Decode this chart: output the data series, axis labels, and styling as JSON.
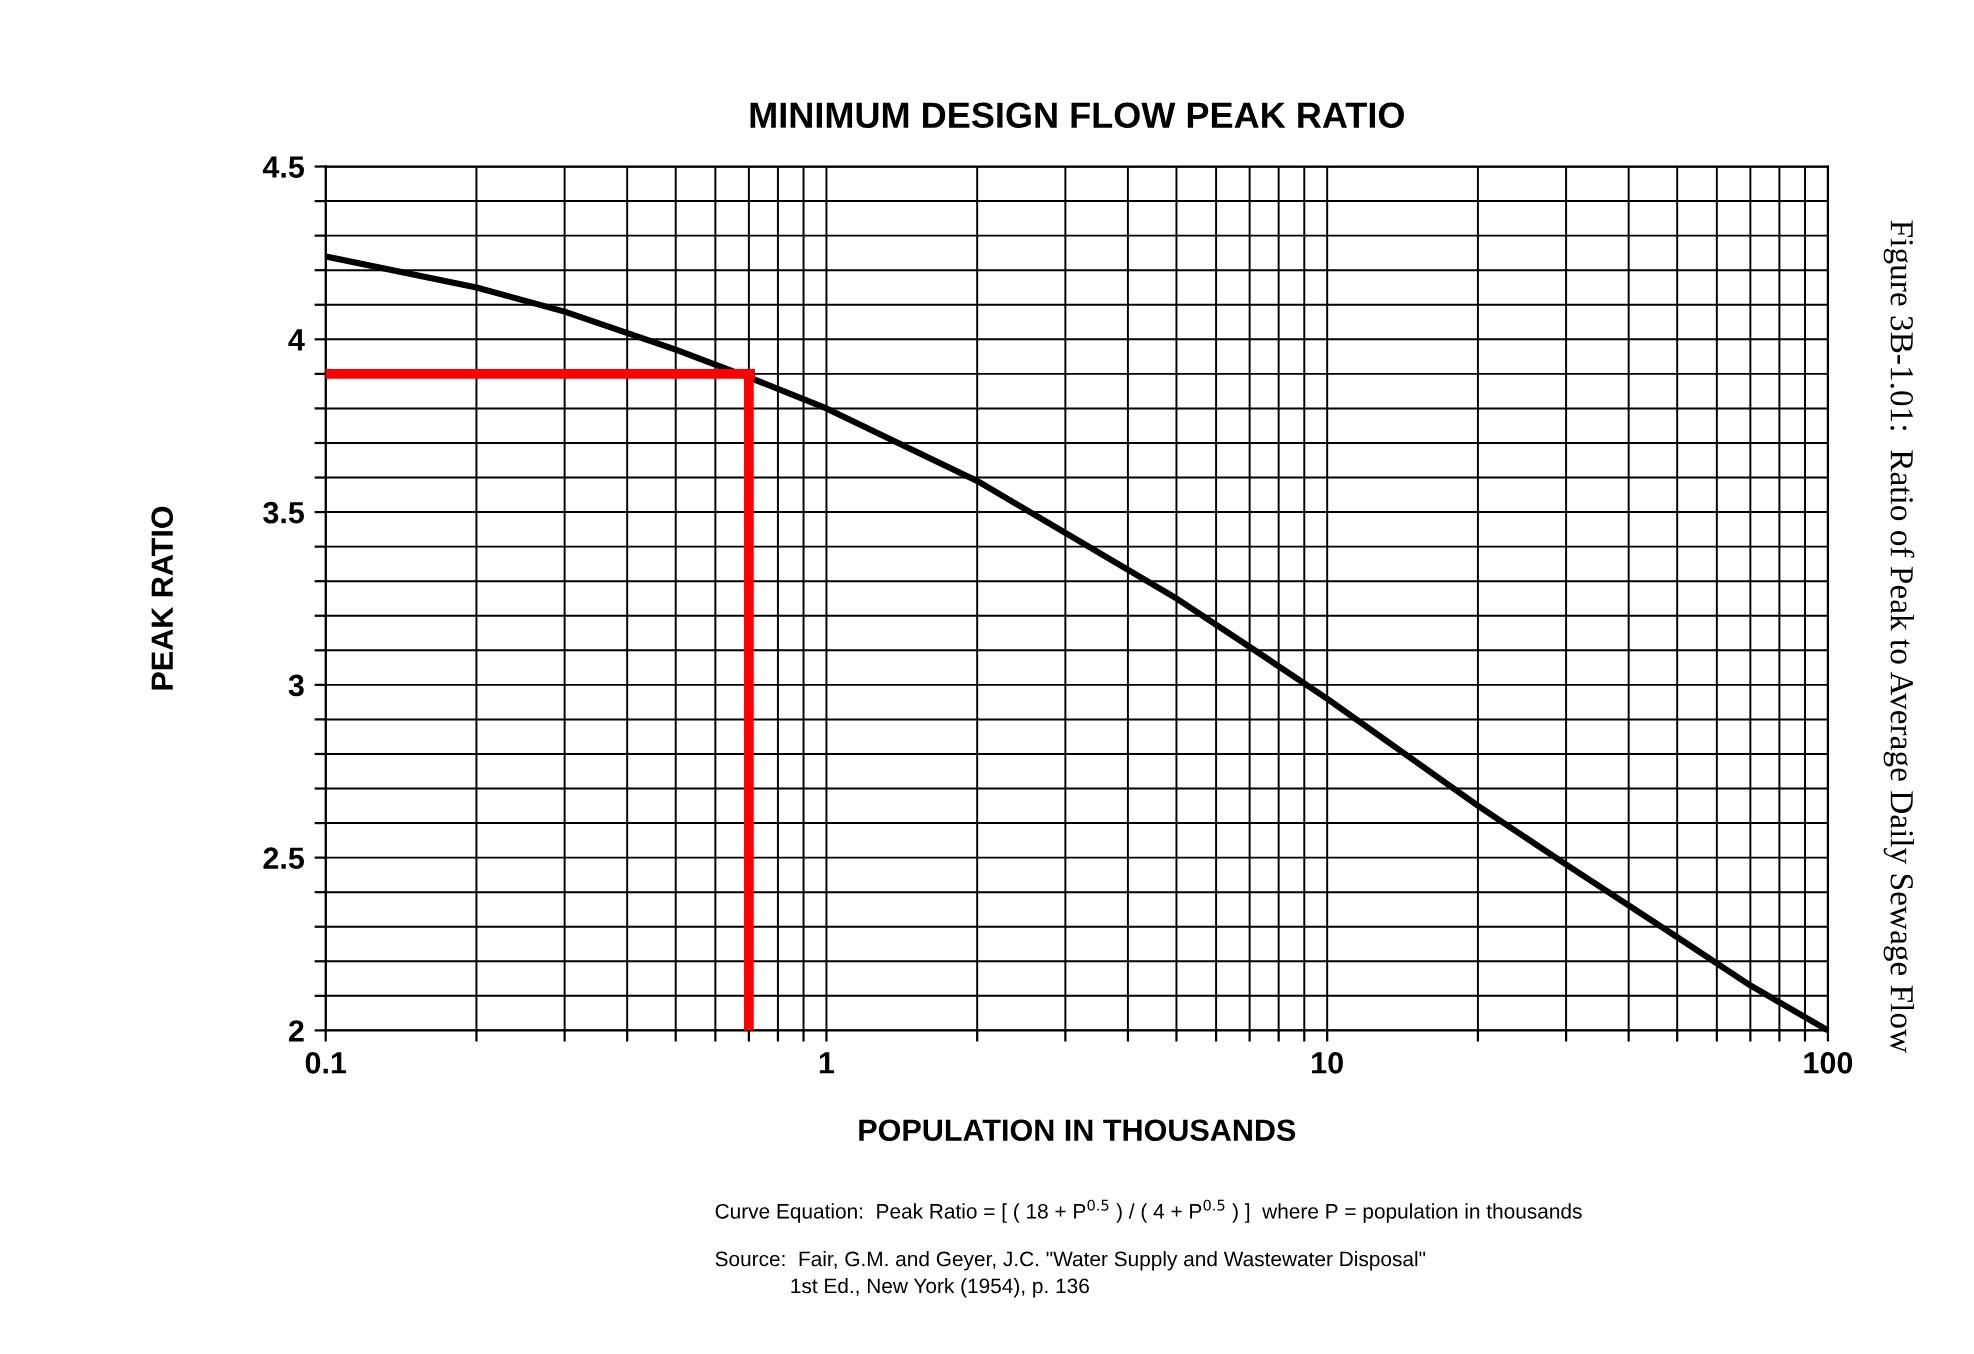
{
  "chart_data": {
    "type": "line",
    "title": "MINIMUM DESIGN FLOW PEAK RATIO",
    "xlabel": "POPULATION IN THOUSANDS",
    "ylabel": "PEAK RATIO",
    "log": "x",
    "grid": true,
    "marker": "none",
    "line_style": "solid",
    "xlim": [
      0.1,
      100
    ],
    "ylim": [
      2,
      4.5
    ],
    "xticks": [
      0.1,
      {
        "value": 0.2,
        "label": null
      },
      {
        "value": 0.3,
        "label": null
      },
      {
        "value": 0.4,
        "label": null
      },
      {
        "value": 0.5,
        "label": null
      },
      {
        "value": 0.6,
        "label": null
      },
      {
        "value": 0.7,
        "label": null
      },
      {
        "value": 0.8,
        "label": null
      },
      {
        "value": 0.9,
        "label": null
      },
      1,
      {
        "value": 2,
        "label": null
      },
      {
        "value": 3,
        "label": null
      },
      {
        "value": 4,
        "label": null
      },
      {
        "value": 5,
        "label": null
      },
      {
        "value": 6,
        "label": null
      },
      {
        "value": 7,
        "label": null
      },
      {
        "value": 8,
        "label": null
      },
      {
        "value": 9,
        "label": null
      },
      10,
      {
        "value": 20,
        "label": null
      },
      {
        "value": 30,
        "label": null
      },
      {
        "value": 40,
        "label": null
      },
      {
        "value": 50,
        "label": null
      },
      {
        "value": 60,
        "label": null
      },
      {
        "value": 70,
        "label": null
      },
      {
        "value": 80,
        "label": null
      },
      {
        "value": 90,
        "label": null
      },
      100
    ],
    "yticks": [
      2,
      {
        "value": 2.1,
        "label": null
      },
      {
        "value": 2.2,
        "label": null
      },
      {
        "value": 2.3,
        "label": null
      },
      {
        "value": 2.4,
        "label": null
      },
      2.5,
      {
        "value": 2.6,
        "label": null
      },
      {
        "value": 2.7,
        "label": null
      },
      {
        "value": 2.8,
        "label": null
      },
      {
        "value": 2.9,
        "label": null
      },
      3,
      {
        "value": 3.1,
        "label": null
      },
      {
        "value": 3.2,
        "label": null
      },
      {
        "value": 3.3,
        "label": null
      },
      {
        "value": 3.4,
        "label": null
      },
      3.5,
      {
        "value": 3.6,
        "label": null
      },
      {
        "value": 3.7,
        "label": null
      },
      {
        "value": 3.8,
        "label": null
      },
      {
        "value": 3.9,
        "label": null
      },
      4,
      {
        "value": 4.1,
        "label": null
      },
      {
        "value": 4.2,
        "label": null
      },
      {
        "value": 4.3,
        "label": null
      },
      {
        "value": 4.4,
        "label": null
      },
      4.5
    ],
    "series": [
      {
        "color": "#000000",
        "x": [
          0.1,
          0.2,
          0.3,
          0.5,
          0.7,
          1,
          2,
          3,
          5,
          7,
          10,
          20,
          30,
          50,
          70,
          100
        ],
        "values": [
          4.24,
          4.15,
          4.08,
          3.97,
          3.89,
          3.8,
          3.59,
          3.44,
          3.25,
          3.11,
          2.96,
          2.65,
          2.48,
          2.27,
          2.13,
          2.0
        ]
      },
      {
        "color": "#ff0000",
        "x": [
          0.1,
          0.72
        ],
        "values": [
          3.9,
          3.9
        ]
      },
      {
        "color": "#ff0000",
        "x": [
          0.7,
          0.7
        ],
        "values": [
          3.9,
          2
        ]
      }
    ],
    "annotations": [
      "Curve Equation:  Peak Ratio = [ ( 18 + P$^{0.5}$ ) / ( 4 + P$^{0.5}$ ) ]  where P = population in thousands",
      "Source:  Fair, G.M. and Geyer, J.C. \"Water Supply and Wastewater Disposal\"\n             1st Ed., New York (1954), p. 136",
      "Figure 3B-1.01:  Ratio of Peak to Average Daily Sewage Flow"
    ]
  }
}
